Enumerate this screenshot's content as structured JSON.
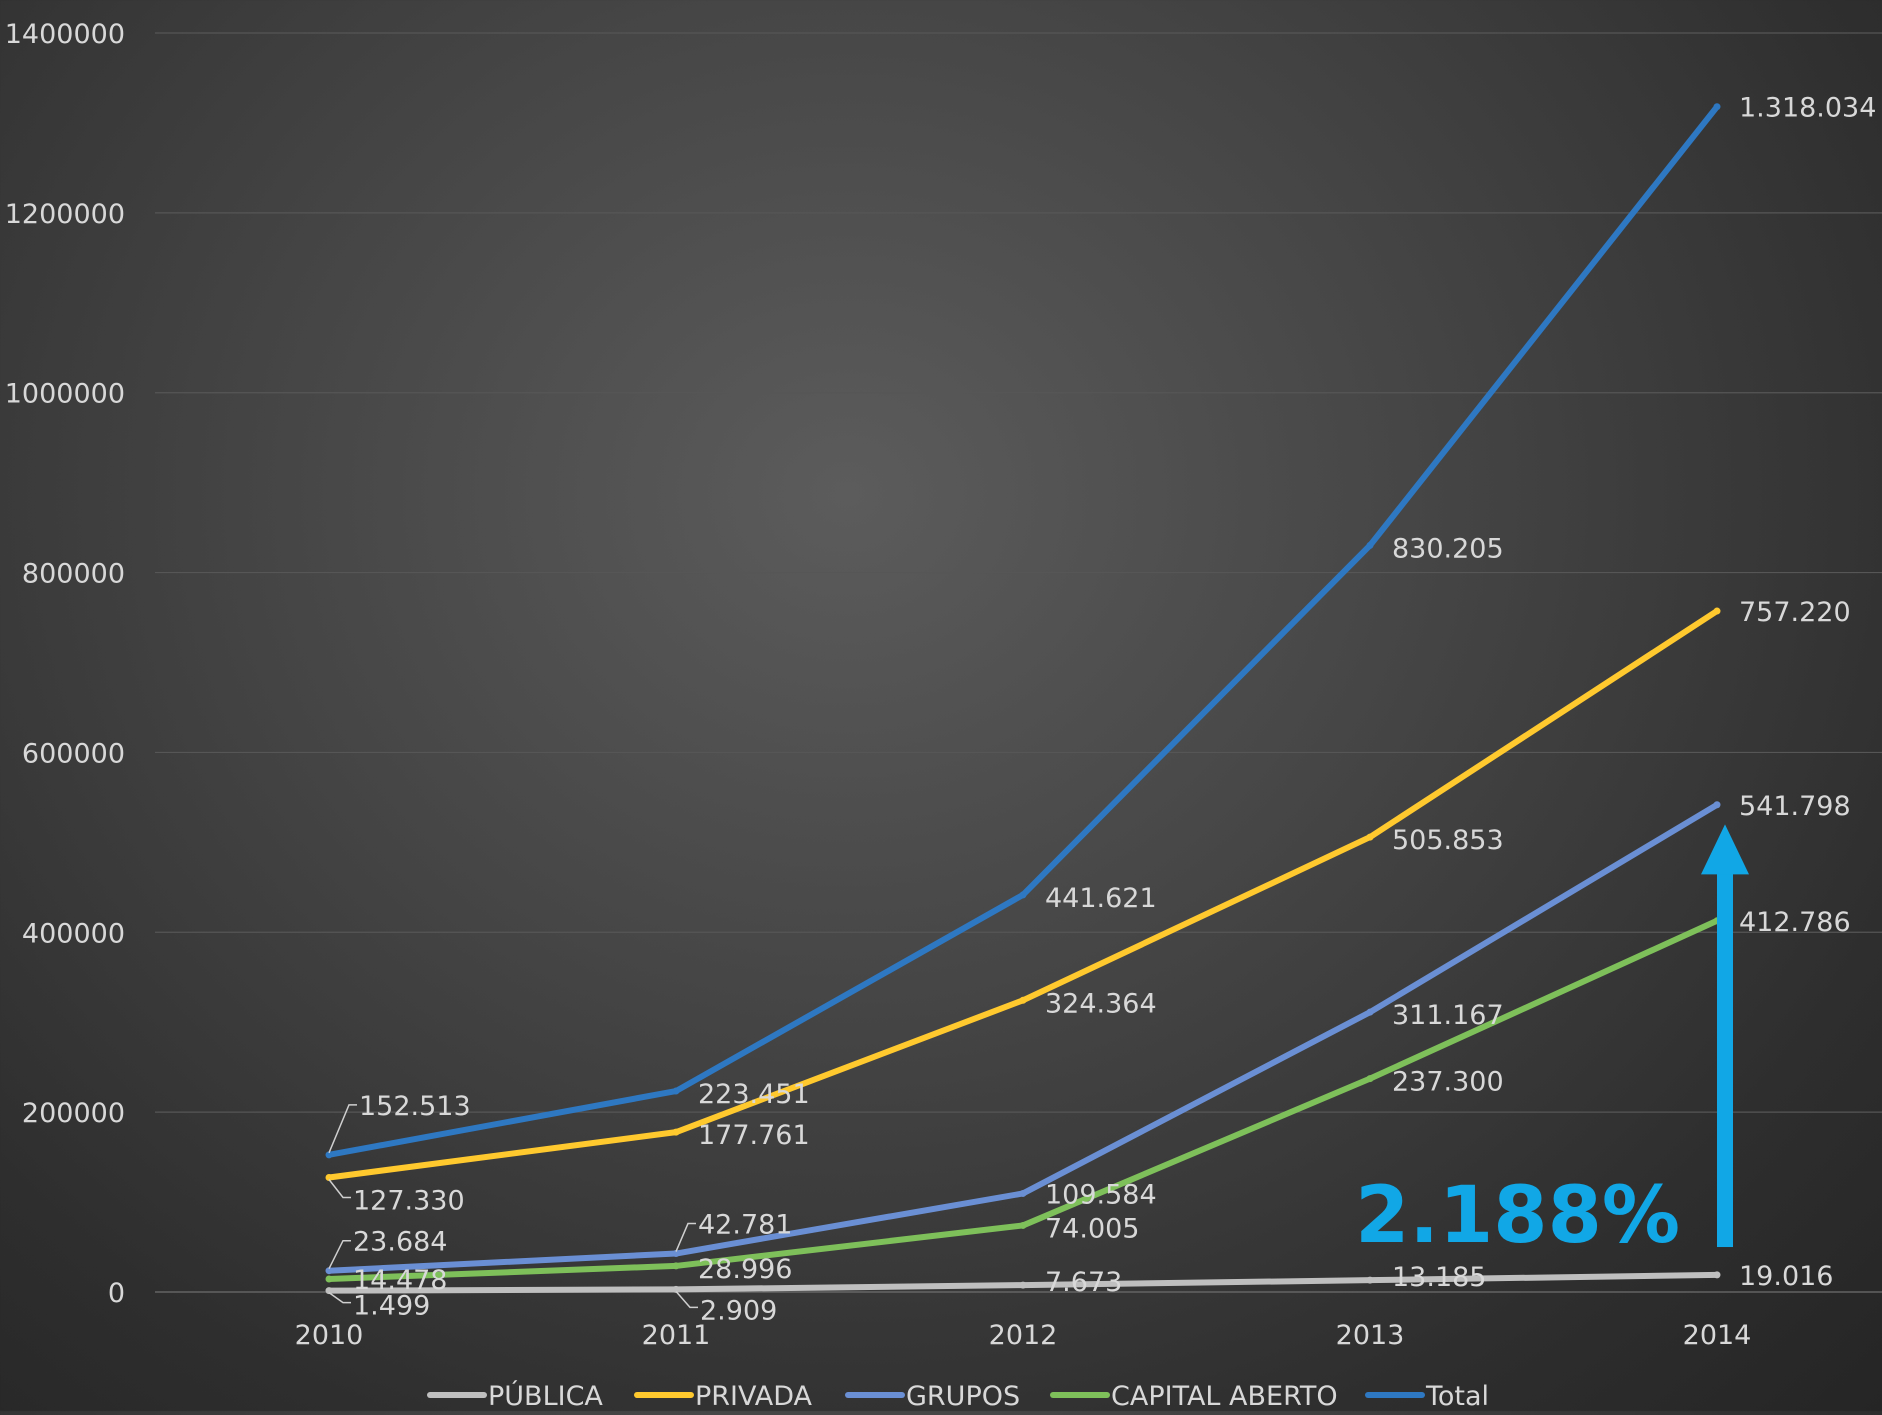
{
  "chart_data": {
    "type": "line",
    "title": "",
    "xlabel": "",
    "ylabel": "",
    "x": [
      "2010",
      "2011",
      "2012",
      "2013",
      "2014"
    ],
    "ylim": [
      0,
      1400000
    ],
    "yticks": [
      0,
      200000,
      400000,
      600000,
      800000,
      1000000,
      1200000,
      1400000
    ],
    "ytick_labels": [
      "0",
      "200000",
      "400000",
      "600000",
      "800000",
      "1000000",
      "1200000",
      "1400000"
    ],
    "grid": true,
    "legend_position": "bottom",
    "series": [
      {
        "name": "PÚBLICA",
        "color": "#bfbfbf",
        "values": [
          1499,
          2909,
          7673,
          13185,
          19016
        ],
        "labels": [
          "1.499",
          "2.909",
          "7.673",
          "13.185",
          "19.016"
        ]
      },
      {
        "name": "PRIVADA",
        "color": "#ffc92e",
        "values": [
          127330,
          177761,
          324364,
          505853,
          757220
        ],
        "labels": [
          "127.330",
          "177.761",
          "324.364",
          "505.853",
          "757.220"
        ]
      },
      {
        "name": "GRUPOS",
        "color": "#6a8fd4",
        "values": [
          23684,
          42781,
          109584,
          311167,
          541798
        ],
        "labels": [
          "23.684",
          "42.781",
          "109.584",
          "311.167",
          "541.798"
        ]
      },
      {
        "name": "CAPITAL ABERTO",
        "color": "#7ec05a",
        "values": [
          14478,
          28996,
          74005,
          237300,
          412786
        ],
        "labels": [
          "14.478",
          "28.996",
          "74.005",
          "237.300",
          "412.786"
        ]
      },
      {
        "name": "Total",
        "color": "#2e78c2",
        "values": [
          152513,
          223451,
          441621,
          830205,
          1318034
        ],
        "labels": [
          "152.513",
          "223.451",
          "441.621",
          "830.205",
          "1.318.034"
        ]
      }
    ],
    "annotations": [
      {
        "text": "2.188%",
        "color": "#11a7e6",
        "arrow": "up",
        "arrow_from_value": 50000,
        "arrow_to_value": 520000
      }
    ]
  }
}
